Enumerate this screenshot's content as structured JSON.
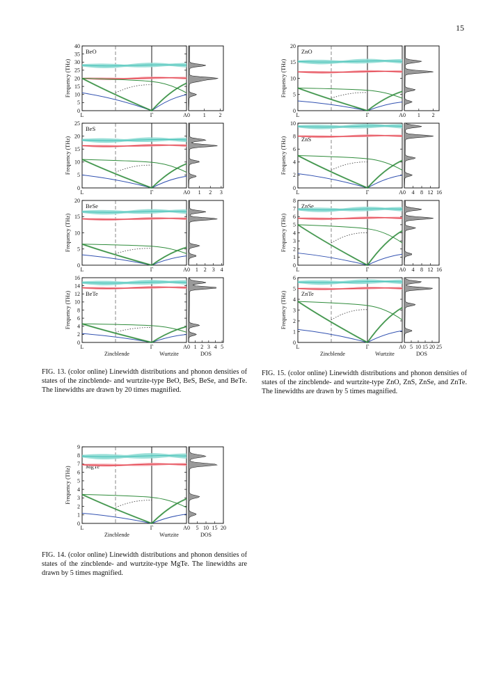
{
  "page_number": "15",
  "colors": {
    "acoustic_ta": "#3050b0",
    "acoustic_la": "#2e8b3a",
    "optical_to": "#3fbfb5",
    "optical_lo": "#e0303a",
    "band_fill_to": "#8fdcd4",
    "band_fill_lo": "#f4a0a8",
    "band_fill_ac": "#8ccf8c",
    "dos": "#777777"
  },
  "labels": {
    "axis_ylabel": "Frequency (THz)",
    "x_L": "L",
    "x_G": "Γ",
    "x_A": "A",
    "x_zb": "Zincblende",
    "x_wz": "Wurtzite",
    "dos": "DOS"
  },
  "figures": [
    {
      "id": "fig13",
      "caption": "FIG. 13. (color online) Linewidth distributions and phonon densities of states of the zincblende- and wurtzite-type BeO, BeS, BeSe, and BeTe. The linewidths are drawn by 20 times magnified.",
      "panels": [
        {
          "material": "BeO",
          "ymax": 40,
          "yticks": [
            "0",
            "5",
            "10",
            "15",
            "20",
            "25",
            "30",
            "35",
            "40"
          ],
          "dos_ticks": [
            "0",
            "1",
            "2"
          ],
          "dos_max": 2.2,
          "acoustic_top": 11,
          "la_top": 20,
          "opt_lo": 20,
          "opt_to": 28,
          "label_pos": "top"
        },
        {
          "material": "BeS",
          "ymax": 25,
          "yticks": [
            "0",
            "5",
            "10",
            "15",
            "20",
            "25"
          ],
          "dos_ticks": [
            "0",
            "1",
            "2",
            "3"
          ],
          "dos_max": 3.2,
          "acoustic_top": 5,
          "la_top": 11,
          "opt_lo": 16.3,
          "opt_to": 18.5,
          "label_pos": "top"
        },
        {
          "material": "BeSe",
          "ymax": 20,
          "yticks": [
            "0",
            "5",
            "10",
            "15",
            "20"
          ],
          "dos_ticks": [
            "0",
            "1",
            "2",
            "3",
            "4"
          ],
          "dos_max": 4.2,
          "acoustic_top": 3.2,
          "la_top": 6.5,
          "opt_lo": 14.3,
          "opt_to": 16.5,
          "label_pos": "top"
        },
        {
          "material": "BeTe",
          "ymax": 16,
          "yticks": [
            "0",
            "2",
            "4",
            "6",
            "8",
            "10",
            "12",
            "14",
            "16"
          ],
          "dos_ticks": [
            "0",
            "1",
            "2",
            "3",
            "4",
            "5"
          ],
          "dos_max": 5.2,
          "acoustic_top": 2.2,
          "la_top": 4.6,
          "opt_lo": 13.5,
          "opt_to": 14.8,
          "label_pos": "mid",
          "show_x": true
        }
      ]
    },
    {
      "id": "fig15",
      "caption": "FIG. 15. (color online) Linewidth distributions and phonon densities of states of the zincblende- and wurtzite-type ZnO, ZnS, ZnSe, and ZnTe. The linewidths are drawn by 5 times magnified.",
      "panels": [
        {
          "material": "ZnO",
          "ymax": 20,
          "yticks": [
            "0",
            "5",
            "10",
            "15",
            "20"
          ],
          "dos_ticks": [
            "0",
            "1",
            "2"
          ],
          "dos_max": 2.4,
          "acoustic_top": 3,
          "la_top": 7,
          "opt_lo": 12,
          "opt_to": 15.2,
          "label_pos": "top"
        },
        {
          "material": "ZnS",
          "ymax": 10,
          "yticks": [
            "0",
            "2",
            "4",
            "6",
            "8",
            "10"
          ],
          "dos_ticks": [
            "0",
            "4",
            "8",
            "12",
            "16"
          ],
          "dos_max": 16,
          "acoustic_top": 2.2,
          "la_top": 5,
          "opt_lo": 8,
          "opt_to": 9.5,
          "label_pos": "mid"
        },
        {
          "material": "ZnSe",
          "ymax": 8,
          "yticks": [
            "0",
            "1",
            "2",
            "3",
            "4",
            "5",
            "6",
            "7",
            "8"
          ],
          "dos_ticks": [
            "0",
            "4",
            "8",
            "12",
            "16"
          ],
          "dos_max": 16,
          "acoustic_top": 1.5,
          "la_top": 5,
          "opt_lo": 5.8,
          "opt_to": 6.9,
          "label_pos": "top"
        },
        {
          "material": "ZnTe",
          "ymax": 6,
          "yticks": [
            "0",
            "1",
            "2",
            "3",
            "4",
            "5",
            "6"
          ],
          "dos_ticks": [
            "0",
            "5",
            "10",
            "15",
            "20",
            "25"
          ],
          "dos_max": 25,
          "acoustic_top": 1.2,
          "la_top": 3.8,
          "opt_lo": 5,
          "opt_to": 5.6,
          "label_pos": "mid",
          "show_x": true
        }
      ]
    },
    {
      "id": "fig14",
      "caption": "FIG. 14. (color online) Linewidth distributions and phonon densities of states of the zincblende- and wurtzite-type MgTe. The linewidths are drawn by 5 times magnified.",
      "panels": [
        {
          "material": "MgTe",
          "ymax": 9,
          "yticks": [
            "0",
            "1",
            "2",
            "3",
            "4",
            "5",
            "6",
            "7",
            "8",
            "9"
          ],
          "dos_ticks": [
            "0",
            "5",
            "10",
            "15",
            "20"
          ],
          "dos_max": 20,
          "acoustic_top": 1.2,
          "la_top": 3.4,
          "opt_lo": 6.9,
          "opt_to": 7.9,
          "label_pos": "mid",
          "show_x": true
        }
      ]
    }
  ]
}
